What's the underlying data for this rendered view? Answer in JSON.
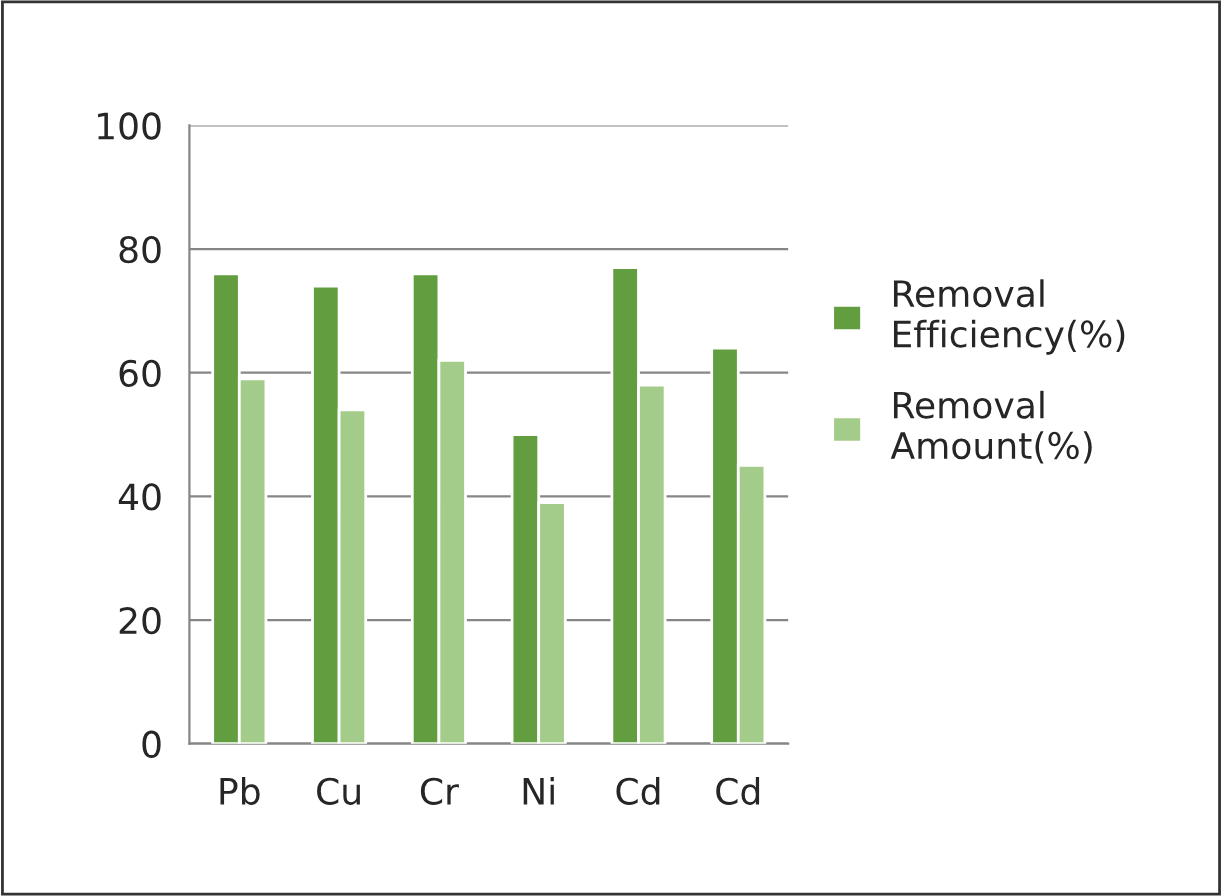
{
  "chart_data": {
    "type": "bar",
    "categories": [
      "Pb",
      "Cu",
      "Cr",
      "Ni",
      "Cd",
      "Cd"
    ],
    "series": [
      {
        "name": "Removal Efficiency(%)",
        "color": "#629e3f",
        "values": [
          76,
          74,
          76,
          50,
          77,
          64
        ]
      },
      {
        "name": "Removal Amount(%)",
        "color": "#a3cc8a",
        "values": [
          59,
          54,
          62,
          39,
          58,
          45
        ]
      }
    ],
    "ylim": [
      0,
      100
    ],
    "yticks": [
      0,
      20,
      40,
      60,
      80,
      100
    ],
    "grid": "y",
    "legend": "right"
  }
}
